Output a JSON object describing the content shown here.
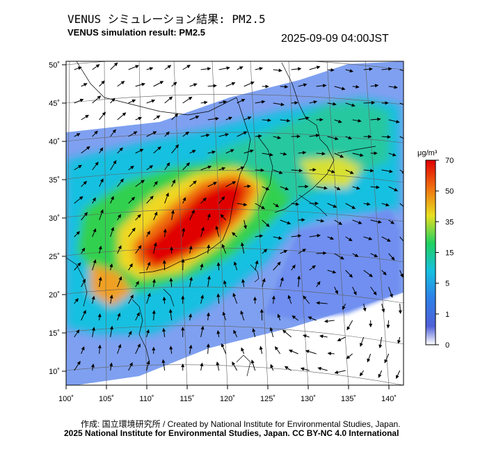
{
  "header": {
    "title_jp": "VENUS シミュレーション結果: PM2.5",
    "title_en": "VENUS simulation result: PM2.5",
    "timestamp": "2025-09-09 04:00JST"
  },
  "map": {
    "lon_labels": [
      "100˚",
      "105˚",
      "110˚",
      "115˚",
      "120˚",
      "125˚",
      "130˚",
      "135˚",
      "140˚"
    ],
    "lat_labels": [
      "50˚",
      "45˚",
      "40˚",
      "35˚",
      "30˚",
      "25˚",
      "20˚",
      "15˚",
      "10˚"
    ],
    "field": "PM2.5 concentration with wind vectors"
  },
  "colorbar": {
    "unit": "μg/m³",
    "ticks": [
      "70",
      "50",
      "35",
      "15",
      "5",
      "1",
      "0"
    ],
    "colors": [
      "#ffffff",
      "#3a50d8",
      "#16b8e0",
      "#1fd060",
      "#f0d820",
      "#f06010",
      "#e00000"
    ]
  },
  "footer": {
    "credit_line": "作成: 国立環境研究所 / Created by National Institute for Environmental Studies, Japan.",
    "copyright_line": "2025 National Institute for Environmental Studies, Japan. CC BY-NC 4.0 International"
  }
}
